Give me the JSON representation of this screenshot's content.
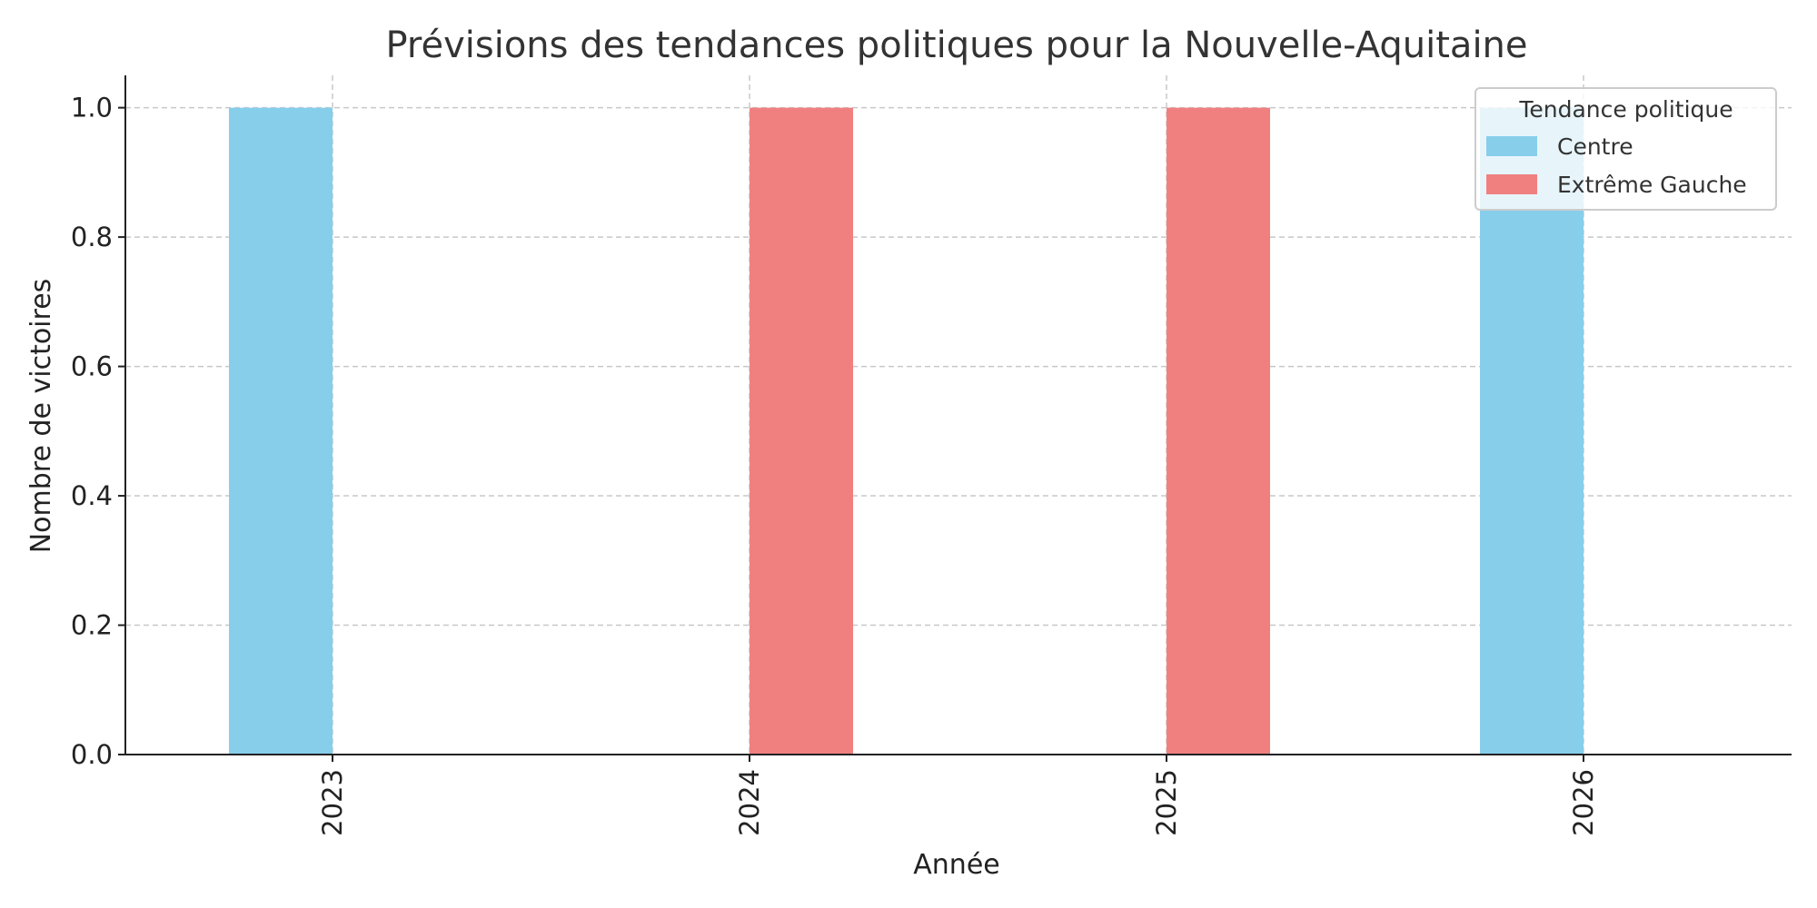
{
  "chart_data": {
    "type": "bar",
    "title": "Prévisions des tendances politiques pour la Nouvelle-Aquitaine",
    "xlabel": "Année",
    "ylabel": "Nombre de victoires",
    "categories": [
      "2023",
      "2024",
      "2025",
      "2026"
    ],
    "series": [
      {
        "name": "Centre",
        "values": [
          1,
          0,
          0,
          1
        ],
        "color": "#87CEEB"
      },
      {
        "name": "Extrême Gauche",
        "values": [
          0,
          1,
          1,
          0
        ],
        "color": "#F08080"
      }
    ],
    "ylim": [
      0,
      1.05
    ],
    "yticks": [
      "0.0",
      "0.2",
      "0.4",
      "0.6",
      "0.8",
      "1.0"
    ],
    "grid": true,
    "legend": {
      "title": "Tendance politique",
      "placement": "top-right"
    }
  }
}
